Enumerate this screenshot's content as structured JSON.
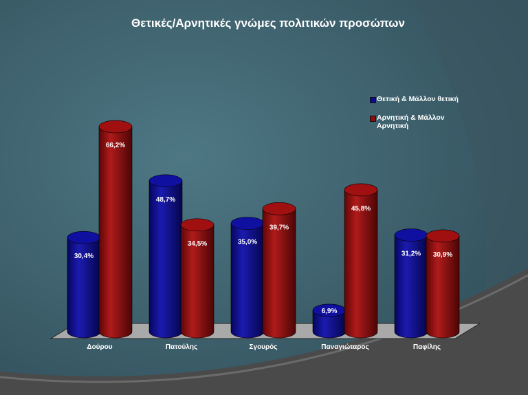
{
  "chart_data": {
    "type": "bar",
    "title": "Θετικές/Αρνητικές γνώμες πολιτικών προσώπων",
    "categories": [
      "Δούρου",
      "Πατούλης",
      "Σγουρός",
      "Παναγιώταρος",
      "Παφίλης"
    ],
    "series": [
      {
        "name": "Θετική & Μάλλον θετική",
        "color": "#0b0b8c",
        "values": [
          30.4,
          48.7,
          35.0,
          6.9,
          31.2
        ],
        "labels": [
          "30,4%",
          "48,7%",
          "35,0%",
          "6,9%",
          "31,2%"
        ]
      },
      {
        "name": "Αρνητική & Μάλλον Αρνητική",
        "color": "#8c0b0b",
        "values": [
          66.2,
          34.5,
          39.7,
          45.8,
          30.9
        ],
        "labels": [
          "66,2%",
          "34,5%",
          "39,7%",
          "45,8%",
          "30,9%"
        ]
      }
    ],
    "ylim": [
      0,
      70
    ],
    "legend_position": "right",
    "grid": false,
    "style": "3d-cylinder"
  }
}
